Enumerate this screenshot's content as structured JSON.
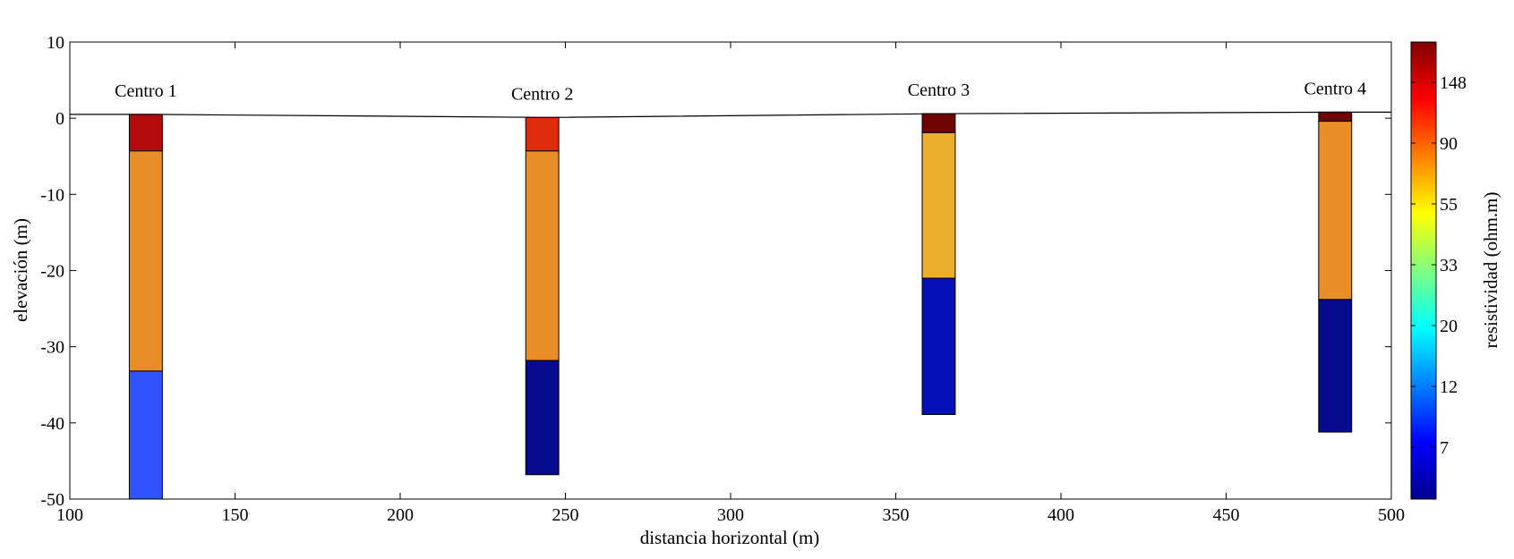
{
  "chart_data": {
    "type": "bar",
    "xlabel": "distancia horizontal (m)",
    "ylabel": "elevación (m)",
    "xlim": [
      100,
      500
    ],
    "ylim": [
      -50,
      10
    ],
    "xticks": [
      "100",
      "150",
      "200",
      "250",
      "300",
      "350",
      "400",
      "450",
      "500"
    ],
    "yticks": [
      "10",
      "0",
      "-10",
      "-20",
      "-30",
      "-40",
      "-50"
    ],
    "grid": false,
    "surface": [
      [
        100,
        0.5
      ],
      [
        125,
        0.5
      ],
      [
        245,
        0.1
      ],
      [
        365,
        0.6
      ],
      [
        485,
        0.8
      ],
      [
        500,
        0.8
      ]
    ],
    "columns": [
      {
        "name": "Centro 1",
        "x_range": [
          118,
          128
        ],
        "layers": [
          {
            "top": 0.5,
            "bottom": -4.3,
            "color": "#B40B0B"
          },
          {
            "top": -4.3,
            "bottom": -33.2,
            "color": "#E88D27"
          },
          {
            "top": -33.2,
            "bottom": -50.0,
            "color": "#2F54FF"
          }
        ]
      },
      {
        "name": "Centro 2",
        "x_range": [
          238,
          248
        ],
        "layers": [
          {
            "top": 0.1,
            "bottom": -4.3,
            "color": "#E02C0C"
          },
          {
            "top": -4.3,
            "bottom": -31.8,
            "color": "#E88D27"
          },
          {
            "top": -31.8,
            "bottom": -46.8,
            "color": "#050B8C"
          }
        ]
      },
      {
        "name": "Centro 3",
        "x_range": [
          358,
          368
        ],
        "layers": [
          {
            "top": 0.6,
            "bottom": -1.9,
            "color": "#6E0505"
          },
          {
            "top": -1.9,
            "bottom": -21.0,
            "color": "#EAAF2D"
          },
          {
            "top": -21.0,
            "bottom": -38.9,
            "color": "#0410B8"
          }
        ]
      },
      {
        "name": "Centro 4",
        "x_range": [
          478,
          488
        ],
        "layers": [
          {
            "top": 0.8,
            "bottom": -0.4,
            "color": "#6E0505"
          },
          {
            "top": -0.4,
            "bottom": -23.8,
            "color": "#E88D27"
          },
          {
            "top": -23.8,
            "bottom": -41.2,
            "color": "#050B8C"
          }
        ]
      }
    ],
    "colorbar": {
      "label": "resistividad (ohm.m)",
      "ticks": [
        "148",
        "90",
        "55",
        "33",
        "20",
        "12",
        "7"
      ],
      "stops": [
        "#00008F",
        "#0000FF",
        "#0080FF",
        "#00FFFF",
        "#80FF80",
        "#FFFF00",
        "#FF8000",
        "#FF0000",
        "#800000"
      ]
    }
  }
}
